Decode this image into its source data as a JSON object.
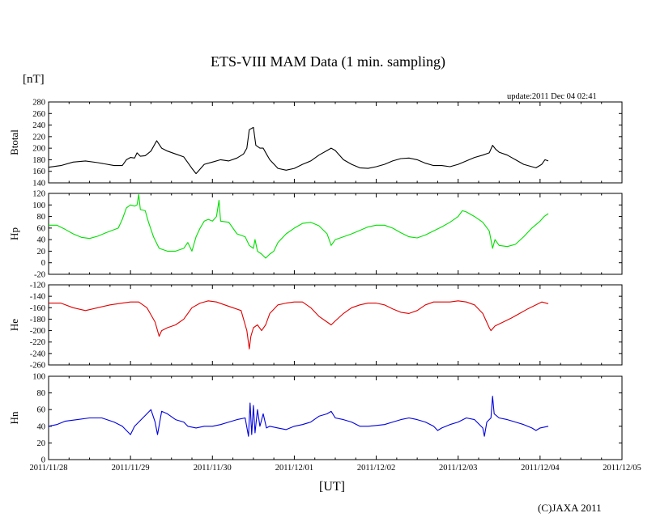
{
  "title": "ETS-VIII MAM Data (1 min. sampling)",
  "unit": "[nT]",
  "update": "update:2011 Dec 04 02:41",
  "xlabel": "[UT]",
  "copyright": "(C)JAXA 2011",
  "chart_data": {
    "type": "line",
    "x_range": [
      "2011-11-28",
      "2011-12-05"
    ],
    "x_tick_labels": [
      "2011/11/28",
      "2011/11/29",
      "2011/11/30",
      "2011/12/01",
      "2011/12/02",
      "2011/12/03",
      "2011/12/04",
      "2011/12/05"
    ],
    "grid": false,
    "panels": [
      {
        "name": "Btotal",
        "color": "#000000",
        "ylim": [
          140,
          280
        ],
        "yticks": [
          140,
          160,
          180,
          200,
          220,
          240,
          260,
          280
        ],
        "points": [
          [
            0,
            167
          ],
          [
            0.15,
            170
          ],
          [
            0.3,
            176
          ],
          [
            0.45,
            178
          ],
          [
            0.6,
            175
          ],
          [
            0.8,
            170
          ],
          [
            0.9,
            170
          ],
          [
            0.95,
            180
          ],
          [
            1.0,
            184
          ],
          [
            1.05,
            183
          ],
          [
            1.08,
            192
          ],
          [
            1.12,
            186
          ],
          [
            1.18,
            187
          ],
          [
            1.25,
            195
          ],
          [
            1.32,
            213
          ],
          [
            1.38,
            200
          ],
          [
            1.45,
            195
          ],
          [
            1.55,
            190
          ],
          [
            1.65,
            185
          ],
          [
            1.75,
            165
          ],
          [
            1.8,
            156
          ],
          [
            1.9,
            172
          ],
          [
            2.0,
            176
          ],
          [
            2.1,
            180
          ],
          [
            2.2,
            178
          ],
          [
            2.3,
            183
          ],
          [
            2.38,
            190
          ],
          [
            2.42,
            200
          ],
          [
            2.45,
            232
          ],
          [
            2.5,
            236
          ],
          [
            2.53,
            205
          ],
          [
            2.58,
            200
          ],
          [
            2.62,
            200
          ],
          [
            2.66,
            190
          ],
          [
            2.7,
            180
          ],
          [
            2.8,
            165
          ],
          [
            2.9,
            162
          ],
          [
            3.0,
            165
          ],
          [
            3.1,
            172
          ],
          [
            3.2,
            178
          ],
          [
            3.3,
            188
          ],
          [
            3.4,
            196
          ],
          [
            3.45,
            200
          ],
          [
            3.5,
            196
          ],
          [
            3.55,
            188
          ],
          [
            3.6,
            180
          ],
          [
            3.7,
            172
          ],
          [
            3.8,
            166
          ],
          [
            3.9,
            165
          ],
          [
            4.0,
            168
          ],
          [
            4.1,
            172
          ],
          [
            4.2,
            178
          ],
          [
            4.3,
            182
          ],
          [
            4.4,
            183
          ],
          [
            4.5,
            180
          ],
          [
            4.6,
            174
          ],
          [
            4.7,
            170
          ],
          [
            4.8,
            170
          ],
          [
            4.9,
            168
          ],
          [
            5.0,
            172
          ],
          [
            5.1,
            178
          ],
          [
            5.2,
            184
          ],
          [
            5.3,
            188
          ],
          [
            5.38,
            192
          ],
          [
            5.42,
            205
          ],
          [
            5.46,
            198
          ],
          [
            5.5,
            193
          ],
          [
            5.6,
            188
          ],
          [
            5.7,
            180
          ],
          [
            5.8,
            172
          ],
          [
            5.9,
            168
          ],
          [
            5.95,
            166
          ],
          [
            6.02,
            172
          ],
          [
            6.06,
            180
          ],
          [
            6.1,
            178
          ]
        ]
      },
      {
        "name": "Hp",
        "color": "#00e000",
        "ylim": [
          -20,
          120
        ],
        "yticks": [
          -20,
          0,
          20,
          40,
          60,
          80,
          100,
          120
        ],
        "points": [
          [
            0,
            65
          ],
          [
            0.1,
            65
          ],
          [
            0.2,
            58
          ],
          [
            0.3,
            50
          ],
          [
            0.4,
            44
          ],
          [
            0.5,
            42
          ],
          [
            0.6,
            46
          ],
          [
            0.7,
            52
          ],
          [
            0.85,
            60
          ],
          [
            0.9,
            75
          ],
          [
            0.95,
            95
          ],
          [
            1.0,
            100
          ],
          [
            1.05,
            98
          ],
          [
            1.08,
            100
          ],
          [
            1.1,
            118
          ],
          [
            1.12,
            92
          ],
          [
            1.18,
            90
          ],
          [
            1.22,
            70
          ],
          [
            1.28,
            45
          ],
          [
            1.35,
            25
          ],
          [
            1.45,
            20
          ],
          [
            1.55,
            20
          ],
          [
            1.65,
            25
          ],
          [
            1.7,
            35
          ],
          [
            1.75,
            20
          ],
          [
            1.8,
            45
          ],
          [
            1.85,
            60
          ],
          [
            1.9,
            72
          ],
          [
            1.95,
            75
          ],
          [
            2.0,
            72
          ],
          [
            2.05,
            80
          ],
          [
            2.08,
            108
          ],
          [
            2.1,
            72
          ],
          [
            2.2,
            70
          ],
          [
            2.3,
            50
          ],
          [
            2.4,
            45
          ],
          [
            2.45,
            30
          ],
          [
            2.5,
            25
          ],
          [
            2.52,
            40
          ],
          [
            2.55,
            20
          ],
          [
            2.6,
            15
          ],
          [
            2.65,
            8
          ],
          [
            2.7,
            15
          ],
          [
            2.75,
            20
          ],
          [
            2.8,
            35
          ],
          [
            2.9,
            50
          ],
          [
            3.0,
            60
          ],
          [
            3.1,
            68
          ],
          [
            3.2,
            70
          ],
          [
            3.3,
            64
          ],
          [
            3.4,
            50
          ],
          [
            3.45,
            30
          ],
          [
            3.5,
            40
          ],
          [
            3.6,
            45
          ],
          [
            3.7,
            50
          ],
          [
            3.8,
            56
          ],
          [
            3.9,
            62
          ],
          [
            4.0,
            65
          ],
          [
            4.1,
            65
          ],
          [
            4.2,
            60
          ],
          [
            4.3,
            52
          ],
          [
            4.4,
            45
          ],
          [
            4.5,
            43
          ],
          [
            4.6,
            48
          ],
          [
            4.7,
            55
          ],
          [
            4.8,
            62
          ],
          [
            4.9,
            70
          ],
          [
            5.0,
            80
          ],
          [
            5.05,
            90
          ],
          [
            5.1,
            88
          ],
          [
            5.2,
            80
          ],
          [
            5.3,
            70
          ],
          [
            5.38,
            55
          ],
          [
            5.42,
            25
          ],
          [
            5.45,
            40
          ],
          [
            5.5,
            30
          ],
          [
            5.6,
            28
          ],
          [
            5.7,
            32
          ],
          [
            5.8,
            45
          ],
          [
            5.9,
            60
          ],
          [
            6.0,
            72
          ],
          [
            6.05,
            80
          ],
          [
            6.1,
            85
          ]
        ]
      },
      {
        "name": "He",
        "color": "#e00000",
        "ylim": [
          -260,
          -120
        ],
        "yticks": [
          -120,
          -140,
          -160,
          -180,
          -200,
          -220,
          -240,
          -260
        ],
        "points": [
          [
            0,
            -152
          ],
          [
            0.15,
            -152
          ],
          [
            0.3,
            -160
          ],
          [
            0.45,
            -165
          ],
          [
            0.6,
            -160
          ],
          [
            0.75,
            -155
          ],
          [
            0.9,
            -152
          ],
          [
            1.0,
            -150
          ],
          [
            1.1,
            -150
          ],
          [
            1.2,
            -160
          ],
          [
            1.3,
            -185
          ],
          [
            1.35,
            -210
          ],
          [
            1.38,
            -200
          ],
          [
            1.45,
            -195
          ],
          [
            1.55,
            -190
          ],
          [
            1.65,
            -180
          ],
          [
            1.75,
            -160
          ],
          [
            1.85,
            -152
          ],
          [
            1.95,
            -148
          ],
          [
            2.05,
            -150
          ],
          [
            2.15,
            -155
          ],
          [
            2.25,
            -160
          ],
          [
            2.35,
            -165
          ],
          [
            2.42,
            -200
          ],
          [
            2.45,
            -232
          ],
          [
            2.47,
            -210
          ],
          [
            2.5,
            -195
          ],
          [
            2.55,
            -190
          ],
          [
            2.6,
            -200
          ],
          [
            2.65,
            -190
          ],
          [
            2.7,
            -170
          ],
          [
            2.8,
            -155
          ],
          [
            2.9,
            -152
          ],
          [
            3.0,
            -150
          ],
          [
            3.1,
            -150
          ],
          [
            3.2,
            -160
          ],
          [
            3.3,
            -175
          ],
          [
            3.4,
            -185
          ],
          [
            3.45,
            -190
          ],
          [
            3.5,
            -183
          ],
          [
            3.6,
            -170
          ],
          [
            3.7,
            -160
          ],
          [
            3.8,
            -155
          ],
          [
            3.9,
            -152
          ],
          [
            4.0,
            -152
          ],
          [
            4.1,
            -155
          ],
          [
            4.2,
            -162
          ],
          [
            4.3,
            -168
          ],
          [
            4.4,
            -170
          ],
          [
            4.5,
            -165
          ],
          [
            4.6,
            -155
          ],
          [
            4.7,
            -150
          ],
          [
            4.8,
            -150
          ],
          [
            4.9,
            -150
          ],
          [
            5.0,
            -148
          ],
          [
            5.1,
            -150
          ],
          [
            5.2,
            -155
          ],
          [
            5.3,
            -170
          ],
          [
            5.38,
            -195
          ],
          [
            5.4,
            -200
          ],
          [
            5.45,
            -192
          ],
          [
            5.55,
            -185
          ],
          [
            5.65,
            -178
          ],
          [
            5.75,
            -170
          ],
          [
            5.85,
            -162
          ],
          [
            5.95,
            -155
          ],
          [
            6.02,
            -150
          ],
          [
            6.1,
            -153
          ]
        ]
      },
      {
        "name": "Hn",
        "color": "#0000e0",
        "ylim": [
          0,
          100
        ],
        "yticks": [
          0,
          20,
          40,
          60,
          80,
          100
        ],
        "points": [
          [
            0,
            40
          ],
          [
            0.1,
            42
          ],
          [
            0.2,
            46
          ],
          [
            0.35,
            48
          ],
          [
            0.5,
            50
          ],
          [
            0.65,
            50
          ],
          [
            0.8,
            45
          ],
          [
            0.9,
            40
          ],
          [
            1.0,
            30
          ],
          [
            1.05,
            40
          ],
          [
            1.1,
            45
          ],
          [
            1.2,
            55
          ],
          [
            1.25,
            60
          ],
          [
            1.3,
            45
          ],
          [
            1.33,
            30
          ],
          [
            1.38,
            58
          ],
          [
            1.45,
            55
          ],
          [
            1.55,
            48
          ],
          [
            1.65,
            45
          ],
          [
            1.7,
            40
          ],
          [
            1.8,
            38
          ],
          [
            1.9,
            40
          ],
          [
            2.0,
            40
          ],
          [
            2.1,
            42
          ],
          [
            2.2,
            45
          ],
          [
            2.3,
            48
          ],
          [
            2.4,
            50
          ],
          [
            2.44,
            28
          ],
          [
            2.46,
            68
          ],
          [
            2.48,
            30
          ],
          [
            2.5,
            65
          ],
          [
            2.52,
            32
          ],
          [
            2.55,
            60
          ],
          [
            2.58,
            40
          ],
          [
            2.62,
            55
          ],
          [
            2.66,
            38
          ],
          [
            2.7,
            40
          ],
          [
            2.8,
            38
          ],
          [
            2.9,
            36
          ],
          [
            3.0,
            40
          ],
          [
            3.1,
            42
          ],
          [
            3.2,
            45
          ],
          [
            3.3,
            52
          ],
          [
            3.4,
            55
          ],
          [
            3.45,
            58
          ],
          [
            3.5,
            50
          ],
          [
            3.6,
            48
          ],
          [
            3.7,
            45
          ],
          [
            3.8,
            40
          ],
          [
            3.9,
            40
          ],
          [
            4.0,
            41
          ],
          [
            4.1,
            42
          ],
          [
            4.2,
            45
          ],
          [
            4.3,
            48
          ],
          [
            4.4,
            50
          ],
          [
            4.5,
            48
          ],
          [
            4.6,
            45
          ],
          [
            4.7,
            40
          ],
          [
            4.75,
            35
          ],
          [
            4.8,
            38
          ],
          [
            4.9,
            42
          ],
          [
            5.0,
            45
          ],
          [
            5.1,
            50
          ],
          [
            5.2,
            48
          ],
          [
            5.3,
            38
          ],
          [
            5.32,
            28
          ],
          [
            5.35,
            45
          ],
          [
            5.4,
            50
          ],
          [
            5.42,
            76
          ],
          [
            5.44,
            55
          ],
          [
            5.5,
            50
          ],
          [
            5.6,
            48
          ],
          [
            5.7,
            45
          ],
          [
            5.8,
            42
          ],
          [
            5.9,
            38
          ],
          [
            5.95,
            35
          ],
          [
            6.0,
            38
          ],
          [
            6.1,
            40
          ]
        ]
      }
    ]
  }
}
